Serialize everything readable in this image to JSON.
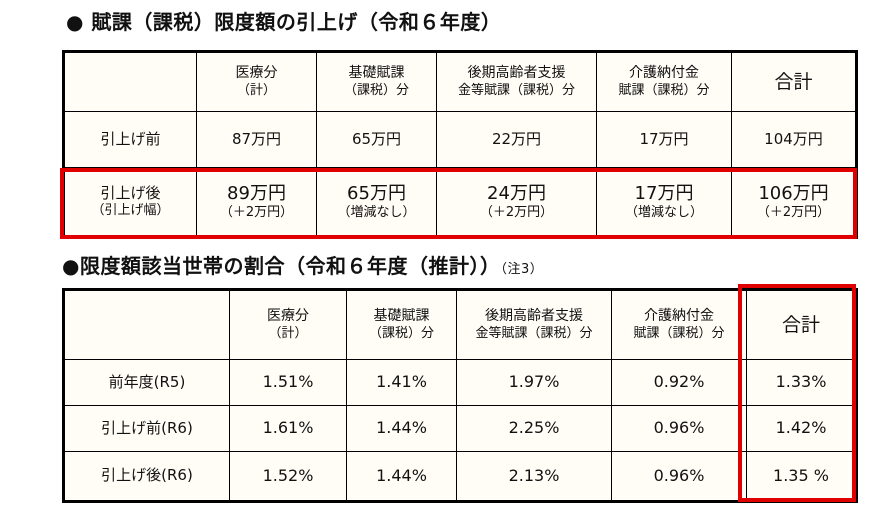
{
  "section1": {
    "title": "● 賦課（課税）限度額の引上げ（令和６年度）",
    "table": {
      "header": [
        [
          "医療分",
          "（計）"
        ],
        [
          "基礎賦課",
          "（課税）分"
        ],
        [
          "後期高齢者支援",
          "金等賦課（課税）分"
        ],
        [
          "介護納付金",
          "賦課（課税）分"
        ],
        [
          "合計"
        ]
      ],
      "rows": [
        {
          "label": [
            "引上げ前"
          ],
          "cells": [
            [
              "87万円"
            ],
            [
              "65万円"
            ],
            [
              "22万円"
            ],
            [
              "17万円"
            ],
            [
              "104万円"
            ]
          ]
        },
        {
          "label": [
            "引上げ後",
            "（引上げ幅）"
          ],
          "cells": [
            [
              "89万円",
              "（＋2万円）"
            ],
            [
              "65万円",
              "（増減なし）"
            ],
            [
              "24万円",
              "（＋2万円）"
            ],
            [
              "17万円",
              "（増減なし）"
            ],
            [
              "106万円",
              "（＋2万円）"
            ]
          ]
        }
      ]
    }
  },
  "section2": {
    "title": "●限度額該当世帯の割合（令和６年度（推計））",
    "note": "（注3）",
    "table": {
      "header": [
        [
          "医療分",
          "（計）"
        ],
        [
          "基礎賦課",
          "（課税）分"
        ],
        [
          "後期高齢者支援",
          "金等賦課（課税）分"
        ],
        [
          "介護納付金",
          "賦課（課税）分"
        ],
        [
          "合計"
        ]
      ],
      "rows": [
        {
          "label": [
            "前年度(R5)"
          ],
          "cells": [
            [
              "1.51%"
            ],
            [
              "1.41%"
            ],
            [
              "1.97%"
            ],
            [
              "0.92%"
            ],
            [
              "1.33%"
            ]
          ]
        },
        {
          "label": [
            "引上げ前(R6)"
          ],
          "cells": [
            [
              "1.61%"
            ],
            [
              "1.44%"
            ],
            [
              "2.25%"
            ],
            [
              "0.96%"
            ],
            [
              "1.42%"
            ]
          ]
        },
        {
          "label": [
            "引上げ後(R6)"
          ],
          "cells": [
            [
              "1.52%"
            ],
            [
              "1.44%"
            ],
            [
              "2.13%"
            ],
            [
              "0.96%"
            ],
            [
              "1.35 %"
            ]
          ]
        }
      ]
    }
  }
}
